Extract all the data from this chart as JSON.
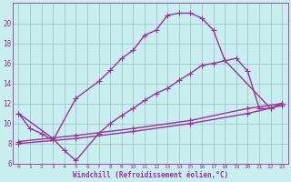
{
  "background_color": "#c8eef0",
  "grid_color": "#9bbfc4",
  "line_color": "#993399",
  "xlim": [
    -0.5,
    23.5
  ],
  "ylim": [
    6,
    22
  ],
  "xlabel": "Windchill (Refroidissement éolien,°C)",
  "xticks": [
    0,
    1,
    2,
    3,
    4,
    5,
    6,
    7,
    8,
    9,
    10,
    11,
    12,
    13,
    14,
    15,
    16,
    17,
    18,
    19,
    20,
    21,
    22,
    23
  ],
  "yticks": [
    6,
    8,
    10,
    12,
    14,
    16,
    18,
    20
  ],
  "curve1_x": [
    0,
    1,
    2,
    3,
    5,
    7,
    8,
    9,
    10,
    11,
    12,
    13,
    14,
    15,
    16,
    17,
    18,
    22,
    23
  ],
  "curve1_y": [
    11,
    9.5,
    9.0,
    8.3,
    12.5,
    14.2,
    15.3,
    16.5,
    17.3,
    18.8,
    19.3,
    20.8,
    21.0,
    21.0,
    20.5,
    19.3,
    16.3,
    11.5,
    12.0
  ],
  "curve2_x": [
    0,
    3,
    4,
    5,
    7,
    8,
    9,
    10,
    11,
    12,
    13,
    14,
    15,
    16,
    17,
    19,
    20,
    21,
    22,
    23
  ],
  "curve2_y": [
    11,
    8.5,
    7.3,
    6.3,
    9.0,
    10.0,
    10.8,
    11.5,
    12.3,
    13.0,
    13.5,
    14.3,
    15.0,
    15.8,
    16.0,
    16.5,
    15.2,
    11.5,
    11.5,
    12.0
  ],
  "curve3_x": [
    0,
    5,
    10,
    15,
    20,
    23
  ],
  "curve3_y": [
    8.2,
    8.8,
    9.5,
    10.3,
    11.5,
    12.0
  ],
  "curve4_x": [
    0,
    5,
    10,
    15,
    20,
    23
  ],
  "curve4_y": [
    8.0,
    8.5,
    9.2,
    10.0,
    11.0,
    11.8
  ],
  "marker": "+",
  "markersize": 4,
  "linewidth": 1.0
}
